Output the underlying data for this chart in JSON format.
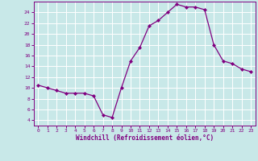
{
  "x": [
    0,
    1,
    2,
    3,
    4,
    5,
    6,
    7,
    8,
    9,
    10,
    11,
    12,
    13,
    14,
    15,
    16,
    17,
    18,
    19,
    20,
    21,
    22,
    23
  ],
  "y": [
    10.5,
    10.0,
    9.5,
    9.0,
    9.0,
    9.0,
    8.5,
    5.0,
    4.5,
    10.0,
    15.0,
    17.5,
    21.5,
    22.5,
    24.0,
    25.5,
    25.0,
    25.0,
    24.5,
    18.0,
    15.0,
    14.5,
    13.5,
    13.0
  ],
  "xlabel": "Windchill (Refroidissement éolien,°C)",
  "xlim": [
    -0.5,
    23.5
  ],
  "ylim": [
    3,
    26
  ],
  "yticks": [
    4,
    6,
    8,
    10,
    12,
    14,
    16,
    18,
    20,
    22,
    24
  ],
  "xticks": [
    0,
    1,
    2,
    3,
    4,
    5,
    6,
    7,
    8,
    9,
    10,
    11,
    12,
    13,
    14,
    15,
    16,
    17,
    18,
    19,
    20,
    21,
    22,
    23
  ],
  "line_color": "#800080",
  "marker_color": "#800080",
  "bg_color": "#c8e8e8",
  "grid_color": "#ffffff",
  "axis_color": "#800080",
  "tick_color": "#800080",
  "label_color": "#800080"
}
